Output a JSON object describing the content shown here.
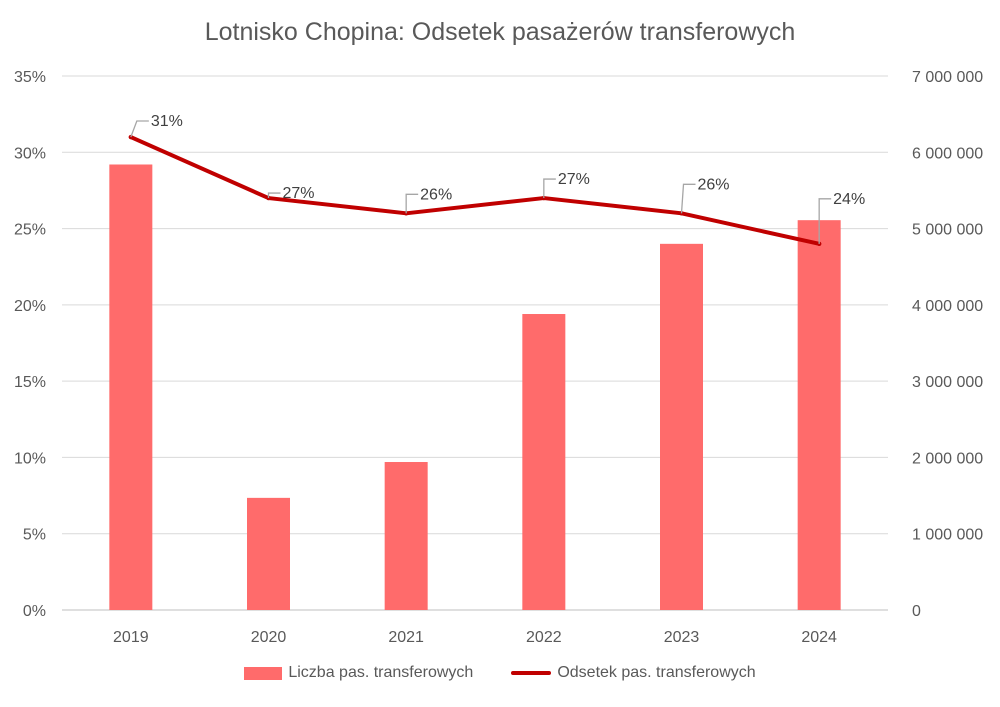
{
  "chart_data": {
    "type": "bar+line",
    "title": "Lotnisko Chopina: Odsetek pasażerów transferowych",
    "categories": [
      "2019",
      "2020",
      "2021",
      "2022",
      "2023",
      "2024"
    ],
    "series": [
      {
        "name": "Liczba pas. transferowych",
        "type": "bar",
        "axis": "right",
        "values": [
          5840000,
          1470000,
          1940000,
          3880000,
          4800000,
          5110000
        ],
        "color": "#ff6b6b"
      },
      {
        "name": "Odsetek pas. transferowych",
        "type": "line",
        "axis": "left",
        "values": [
          0.31,
          0.27,
          0.26,
          0.27,
          0.26,
          0.24
        ],
        "labels": [
          "31%",
          "27%",
          "26%",
          "27%",
          "26%",
          "24%"
        ],
        "color": "#c00000"
      }
    ],
    "y_left": {
      "ylim": [
        0,
        0.35
      ],
      "ticks": [
        0,
        0.05,
        0.1,
        0.15,
        0.2,
        0.25,
        0.3,
        0.35
      ],
      "tick_labels": [
        "0%",
        "5%",
        "10%",
        "15%",
        "20%",
        "25%",
        "30%",
        "35%"
      ]
    },
    "y_right": {
      "ylim": [
        0,
        7000000
      ],
      "ticks": [
        0,
        1000000,
        2000000,
        3000000,
        4000000,
        5000000,
        6000000,
        7000000
      ],
      "tick_labels": [
        "0",
        "1 000 000",
        "2 000 000",
        "3 000 000",
        "4 000 000",
        "5 000 000",
        "6 000 000",
        "7 000 000"
      ]
    },
    "grid": true,
    "legend_position": "bottom"
  }
}
